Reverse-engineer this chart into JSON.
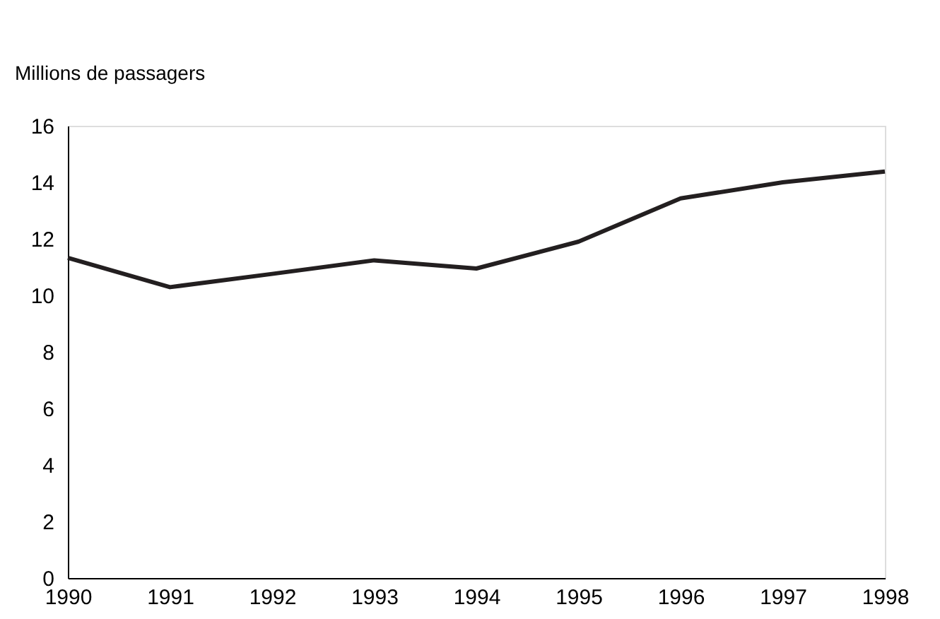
{
  "chart_data": {
    "type": "line",
    "ylabel": "Millions de passagers",
    "x": [
      1990,
      1991,
      1992,
      1993,
      1994,
      1995,
      1996,
      1997,
      1998
    ],
    "series": [
      {
        "color": "#231f20",
        "values": [
          11.33,
          10.29,
          10.76,
          11.24,
          10.95,
          11.9,
          13.43,
          14.0,
          14.38
        ]
      }
    ],
    "xlim": [
      1990,
      1998
    ],
    "xticks": [
      1990,
      1991,
      1992,
      1993,
      1994,
      1995,
      1996,
      1997,
      1998
    ],
    "ylim": [
      0,
      16
    ],
    "yticks": [
      0,
      2,
      4,
      6,
      8,
      10,
      12,
      14,
      16
    ],
    "grid": false,
    "legend": false,
    "marker": "none",
    "line_style": "solid"
  }
}
